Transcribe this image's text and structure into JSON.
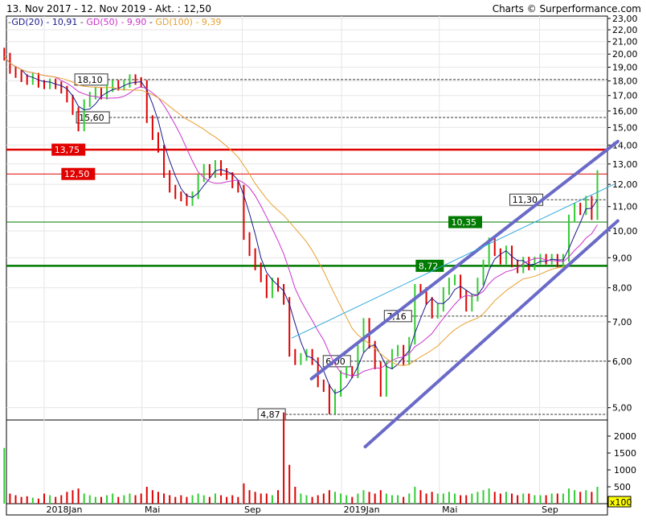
{
  "header": {
    "title": "13. Nov 2017 - 12. Nov 2019 - Akt. : 12,50",
    "credit": "Charts © Surperformance.com"
  },
  "legend": [
    {
      "label": "GD(20)",
      "value": "10,91",
      "color": "#1a1a8c",
      "period_days": 20
    },
    {
      "label": "GD(50)",
      "value": "9,90",
      "color": "#cc33cc",
      "period_days": 50
    },
    {
      "label": "GD(100)",
      "value": "9,39",
      "color": "#e8a030",
      "period_days": 100
    }
  ],
  "chart_data": {
    "type": "line",
    "price_scale": "log",
    "ylim": [
      4.8,
      23.5
    ],
    "xlim": [
      "2017-11-13",
      "2019-11-12"
    ],
    "grid": true,
    "y_ticks": [
      "23,00",
      "22,00",
      "21,00",
      "20,00",
      "19,00",
      "18,00",
      "17,00",
      "16,00",
      "15,00",
      "14,00",
      "13,00",
      "12,00",
      "11,00",
      "10,00",
      "9,00",
      "8,00",
      "7,00",
      "6,00",
      "5,00"
    ],
    "x_ticks": [
      {
        "label": "2018Jan",
        "date": "2018-01-01"
      },
      {
        "label": "Mai",
        "date": "2018-05-01"
      },
      {
        "label": "Sep",
        "date": "2018-09-01"
      },
      {
        "label": "2019Jan",
        "date": "2019-01-01"
      },
      {
        "label": "Mai",
        "date": "2019-05-01"
      },
      {
        "label": "Sep",
        "date": "2019-09-01"
      }
    ],
    "dates": [
      "2017-11-13",
      "2017-11-20",
      "2017-11-27",
      "2017-12-04",
      "2017-12-11",
      "2017-12-18",
      "2017-12-25",
      "2018-01-01",
      "2018-01-08",
      "2018-01-15",
      "2018-01-22",
      "2018-01-29",
      "2018-02-05",
      "2018-02-12",
      "2018-02-19",
      "2018-02-26",
      "2018-03-05",
      "2018-03-12",
      "2018-03-19",
      "2018-03-26",
      "2018-04-02",
      "2018-04-09",
      "2018-04-16",
      "2018-04-23",
      "2018-04-30",
      "2018-05-07",
      "2018-05-14",
      "2018-05-21",
      "2018-05-28",
      "2018-06-04",
      "2018-06-11",
      "2018-06-18",
      "2018-06-25",
      "2018-07-02",
      "2018-07-09",
      "2018-07-16",
      "2018-07-23",
      "2018-07-30",
      "2018-08-06",
      "2018-08-13",
      "2018-08-20",
      "2018-08-27",
      "2018-09-03",
      "2018-09-10",
      "2018-09-17",
      "2018-09-24",
      "2018-10-01",
      "2018-10-08",
      "2018-10-15",
      "2018-10-22",
      "2018-10-29",
      "2018-11-05",
      "2018-11-12",
      "2018-11-19",
      "2018-11-26",
      "2018-12-03",
      "2018-12-10",
      "2018-12-17",
      "2018-12-24",
      "2018-12-31",
      "2019-01-07",
      "2019-01-14",
      "2019-01-21",
      "2019-01-28",
      "2019-02-04",
      "2019-02-11",
      "2019-02-18",
      "2019-02-25",
      "2019-03-04",
      "2019-03-11",
      "2019-03-18",
      "2019-03-25",
      "2019-04-01",
      "2019-04-08",
      "2019-04-15",
      "2019-04-22",
      "2019-04-29",
      "2019-05-06",
      "2019-05-13",
      "2019-05-20",
      "2019-05-27",
      "2019-06-03",
      "2019-06-10",
      "2019-06-17",
      "2019-06-24",
      "2019-07-01",
      "2019-07-08",
      "2019-07-15",
      "2019-07-22",
      "2019-07-29",
      "2019-08-05",
      "2019-08-12",
      "2019-08-19",
      "2019-08-26",
      "2019-09-02",
      "2019-09-09",
      "2019-09-16",
      "2019-09-23",
      "2019-09-30",
      "2019-10-07",
      "2019-10-14",
      "2019-10-21",
      "2019-10-28",
      "2019-11-04",
      "2019-11-11"
    ],
    "close": [
      19.8,
      18.8,
      18.5,
      18.2,
      18.0,
      18.3,
      17.8,
      17.7,
      17.9,
      17.7,
      17.4,
      16.8,
      16.0,
      15.0,
      16.5,
      17.0,
      17.3,
      17.0,
      17.5,
      17.8,
      17.6,
      17.8,
      18.2,
      18.0,
      17.8,
      15.5,
      14.5,
      13.8,
      12.5,
      11.8,
      11.5,
      11.4,
      11.2,
      11.5,
      12.3,
      12.8,
      12.5,
      13.0,
      12.6,
      12.4,
      12.0,
      11.8,
      9.8,
      9.2,
      8.7,
      8.3,
      7.8,
      8.2,
      8.0,
      7.6,
      6.2,
      6.0,
      6.1,
      6.2,
      6.0,
      5.5,
      5.4,
      4.95,
      5.3,
      5.7,
      5.8,
      5.7,
      6.3,
      7.0,
      6.4,
      5.9,
      5.3,
      5.9,
      6.2,
      6.3,
      6.0,
      6.5,
      8.0,
      7.9,
      7.6,
      7.2,
      7.4,
      7.9,
      8.2,
      8.3,
      7.8,
      7.4,
      7.7,
      8.2,
      8.8,
      9.6,
      9.2,
      8.9,
      9.3,
      8.8,
      8.6,
      8.9,
      8.7,
      8.9,
      9.0,
      8.9,
      9.0,
      8.8,
      9.0,
      10.5,
      11.0,
      10.8,
      11.3,
      10.6,
      12.5
    ],
    "volume_x100": [
      1650,
      300,
      250,
      200,
      220,
      180,
      150,
      300,
      250,
      200,
      250,
      350,
      400,
      450,
      300,
      250,
      200,
      200,
      250,
      300,
      200,
      250,
      300,
      250,
      300,
      500,
      400,
      350,
      300,
      250,
      200,
      250,
      200,
      250,
      300,
      250,
      200,
      300,
      250,
      200,
      250,
      200,
      600,
      400,
      350,
      300,
      300,
      250,
      400,
      2700,
      1150,
      500,
      300,
      250,
      200,
      250,
      300,
      400,
      350,
      300,
      250,
      200,
      300,
      400,
      350,
      300,
      400,
      300,
      250,
      250,
      200,
      300,
      500,
      400,
      300,
      350,
      300,
      300,
      350,
      300,
      250,
      250,
      300,
      350,
      400,
      450,
      350,
      300,
      350,
      300,
      250,
      300,
      300,
      250,
      250,
      250,
      300,
      300,
      300,
      450,
      400,
      350,
      400,
      350,
      500
    ],
    "volume_ticks": [
      "2000",
      "1500",
      "1000",
      "500"
    ],
    "volume_unit": "x100",
    "levels": [
      {
        "label": "18,10",
        "value": 18.1,
        "style": "dashed",
        "color": "#333333",
        "labelDate": "2018-03-20"
      },
      {
        "label": "15,60",
        "value": 15.6,
        "style": "dashed",
        "color": "#333333",
        "labelDate": "2018-03-22"
      },
      {
        "label": "13,75",
        "value": 13.75,
        "style": "thick",
        "color": "#e00000",
        "labelDate": "2018-02-20"
      },
      {
        "label": "12,50",
        "value": 12.5,
        "style": "solid",
        "color": "#e00000",
        "labelDate": "2018-03-04"
      },
      {
        "label": "11,30",
        "value": 11.3,
        "style": "dashed",
        "color": "#333333",
        "labelDate": "2019-09-05"
      },
      {
        "label": "10,35",
        "value": 10.35,
        "style": "solid",
        "color": "#007a00",
        "labelDate": "2019-06-22"
      },
      {
        "label": "8,72",
        "value": 8.72,
        "style": "thick",
        "color": "#007a00",
        "labelDate": "2019-05-06"
      },
      {
        "label": "7,16",
        "value": 7.16,
        "style": "dashed",
        "color": "#333333",
        "labelDate": "2019-03-28"
      },
      {
        "label": "6,00",
        "value": 6.0,
        "style": "dashed",
        "color": "#333333",
        "labelDate": "2019-01-12"
      },
      {
        "label": "4,87",
        "value": 4.87,
        "style": "dashed",
        "color": "#333333",
        "labelDate": "2018-10-24"
      }
    ],
    "trendlines": [
      {
        "from": [
          "2018-11-25",
          5.6
        ],
        "to": [
          "2019-12-06",
          14.2
        ],
        "color": "#6a6ac8",
        "style": "channel"
      },
      {
        "from": [
          "2019-01-30",
          4.29
        ],
        "to": [
          "2019-12-06",
          10.4
        ],
        "color": "#6a6ac8",
        "style": "channel"
      },
      {
        "from": [
          "2018-11-01",
          6.57
        ],
        "to": [
          "2019-12-01",
          12.0
        ],
        "color": "#33aadd",
        "style": "thin"
      }
    ]
  }
}
